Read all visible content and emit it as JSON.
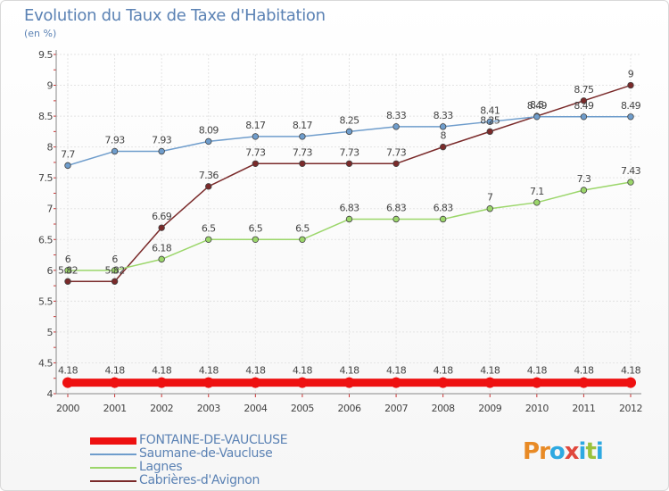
{
  "title": "Evolution du Taux de Taxe d'Habitation",
  "subtitle": "(en %)",
  "logo": {
    "text": "Proxiti",
    "colors": [
      "#e88a25",
      "#e88a25",
      "#2ea9e1",
      "#e0483d",
      "#2ea9e1",
      "#9bc23c",
      "#2ea9e1"
    ]
  },
  "chart_data": {
    "type": "line",
    "title": "Evolution du Taux de Taxe d'Habitation",
    "ylabel": "(en %)",
    "xlabel": "",
    "ylim": [
      4,
      9.5
    ],
    "yticks": [
      "4",
      "4.5",
      "5",
      "5.5",
      "6",
      "6.5",
      "7",
      "7.5",
      "8",
      "8.5",
      "9",
      "9.5"
    ],
    "categories": [
      "2000",
      "2001",
      "2002",
      "2003",
      "2004",
      "2005",
      "2006",
      "2007",
      "2008",
      "2009",
      "2010",
      "2011",
      "2012"
    ],
    "grid": true,
    "legend_position": "bottom-left",
    "series": [
      {
        "name": "FONTAINE-DE-VAUCLUSE",
        "color": "#ee1111",
        "values": [
          4.18,
          4.18,
          4.18,
          4.18,
          4.18,
          4.18,
          4.18,
          4.18,
          4.18,
          4.18,
          4.18,
          4.18,
          4.18
        ],
        "labels": [
          "4.18",
          "4.18",
          "4.18",
          "4.18",
          "4.18",
          "4.18",
          "4.18",
          "4.18",
          "4.18",
          "4.18",
          "4.18",
          "4.18",
          "4.18"
        ]
      },
      {
        "name": "Saumane-de-Vaucluse",
        "color": "#6f9dcc",
        "values": [
          7.7,
          7.93,
          7.93,
          8.09,
          8.17,
          8.17,
          8.25,
          8.33,
          8.33,
          8.41,
          8.49,
          8.49,
          8.49
        ],
        "labels": [
          "7.7",
          "7.93",
          "7.93",
          "8.09",
          "8.17",
          "8.17",
          "8.25",
          "8.33",
          "8.33",
          "8.41",
          "8.49",
          "8.49",
          "8.49"
        ]
      },
      {
        "name": "Lagnes",
        "color": "#9bd66a",
        "values": [
          6.0,
          6.0,
          6.18,
          6.5,
          6.5,
          6.5,
          6.83,
          6.83,
          6.83,
          7.0,
          7.1,
          7.3,
          7.43
        ],
        "labels": [
          "6",
          "6",
          "6.18",
          "6.5",
          "6.5",
          "6.5",
          "6.83",
          "6.83",
          "6.83",
          "7",
          "7.1",
          "7.3",
          "7.43"
        ]
      },
      {
        "name": "Cabrières-d'Avignon",
        "color": "#7a2a2a",
        "values": [
          5.82,
          5.82,
          6.69,
          7.36,
          7.73,
          7.73,
          7.73,
          7.73,
          8.0,
          8.25,
          8.5,
          8.75,
          9.0
        ],
        "labels": [
          "5.82",
          "5.82",
          "6.69",
          "7.36",
          "7.73",
          "7.73",
          "7.73",
          "7.73",
          "8",
          "8.25",
          "8.5",
          "8.75",
          "9"
        ]
      }
    ]
  }
}
